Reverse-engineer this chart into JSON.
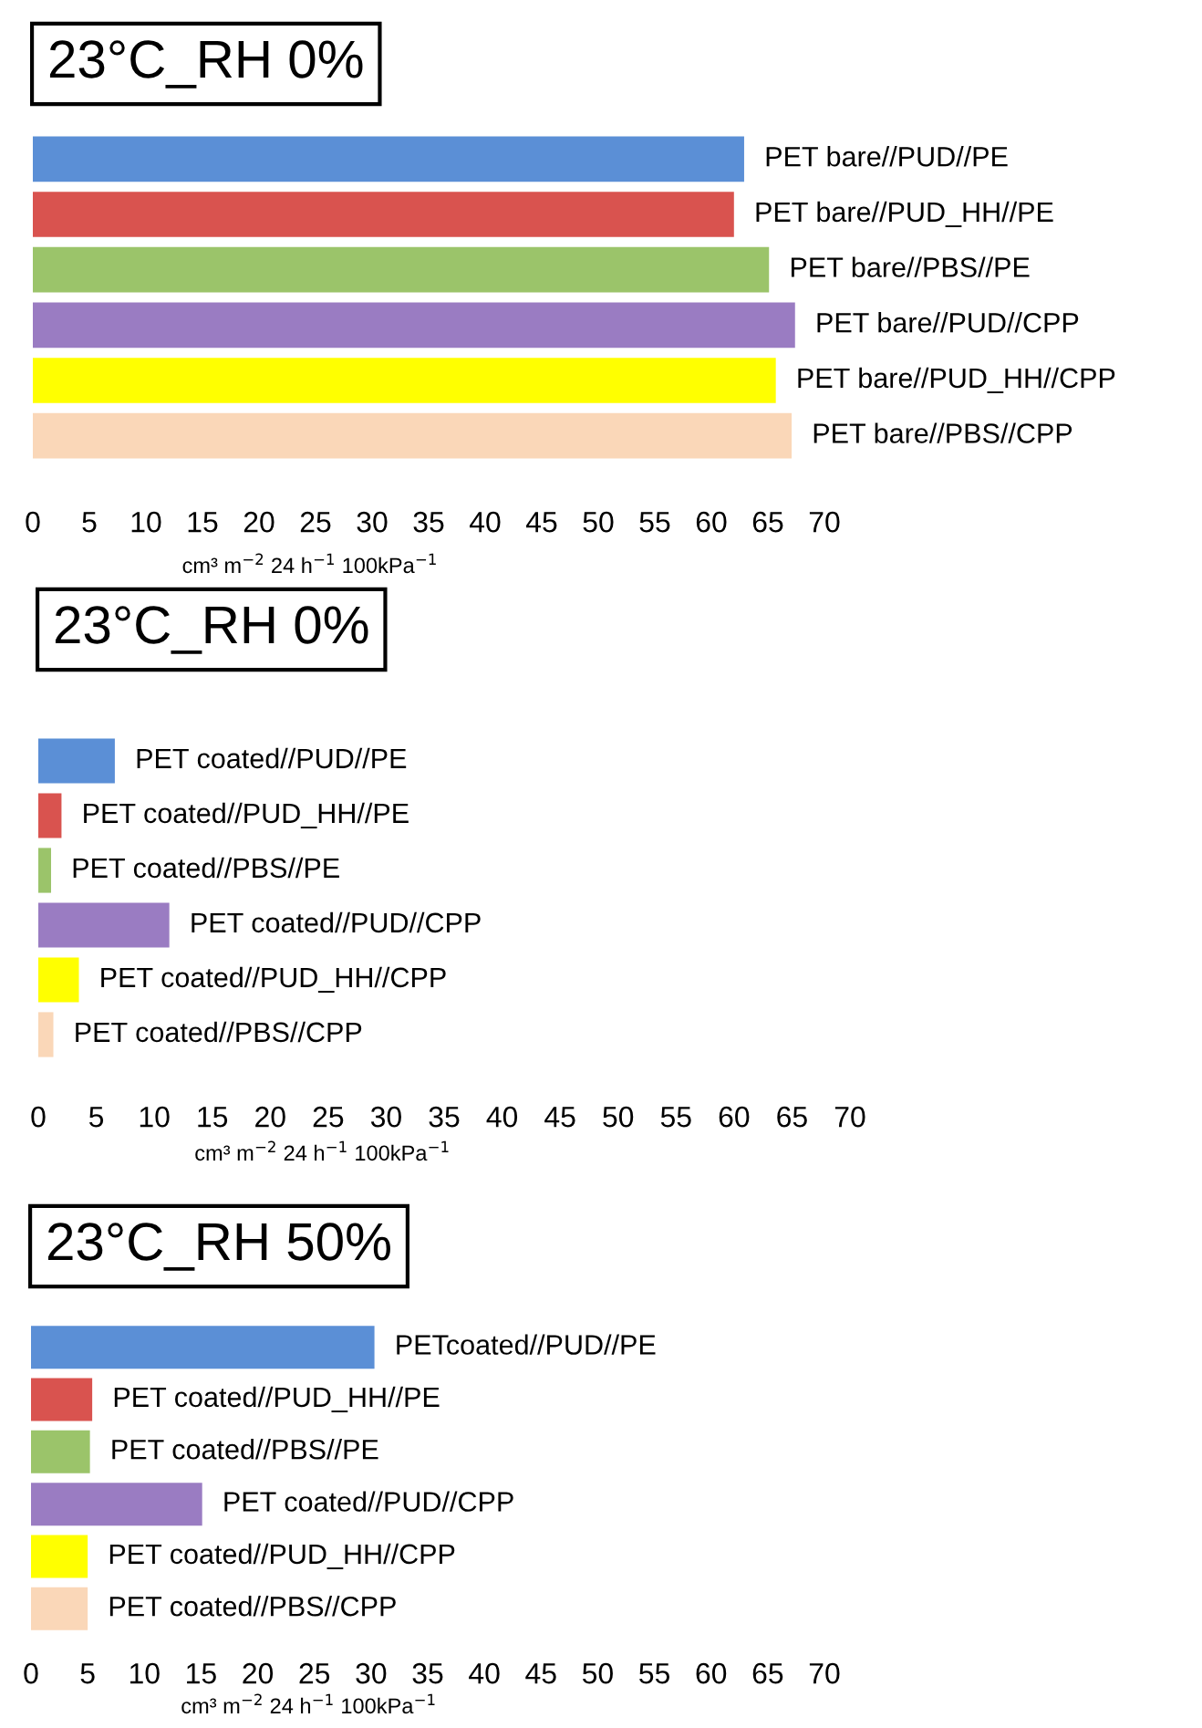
{
  "chart_data": [
    {
      "type": "bar",
      "orientation": "horizontal",
      "title": "23°C_RH 0%",
      "xlabel": "cm³ m$^{−2}$ 24 h$^{−1}$ 100kPa$^{−1}$",
      "categories": [
        "PET bare//PUD//PE",
        "PET bare//PUD_HH//PE",
        "PET bare//PBS//PE",
        "PET bare//PUD//CPP",
        "PET bare//PUD_HH//CPP",
        "PET bare//PBS//CPP"
      ],
      "values": [
        62.9,
        62.0,
        65.1,
        67.4,
        65.7,
        67.1
      ],
      "colors": [
        "#5b8fd6",
        "#d9534f",
        "#9bc46a",
        "#9a7cc2",
        "#ffff00",
        "#fad7b8"
      ],
      "xlim": [
        0,
        70
      ],
      "xticks": [
        0,
        5,
        10,
        15,
        20,
        25,
        30,
        35,
        40,
        45,
        50,
        55,
        60,
        65,
        70
      ],
      "tick_labels": "x"
    },
    {
      "type": "bar",
      "orientation": "horizontal",
      "title": "23°C_RH 0%",
      "xlabel": "cm³ m$^{−2}$ 24 h$^{−1}$ 100kPa$^{−1}$",
      "categories": [
        "PET coated//PUD//PE",
        "PET coated//PUD_HH//PE",
        "PET coated//PBS//PE",
        "PET coated//PUD//CPP",
        "PET coated//PUD_HH//CPP",
        "PET coated//PBS//CPP"
      ],
      "values": [
        6.6,
        2.0,
        1.1,
        11.3,
        3.5,
        1.3
      ],
      "colors": [
        "#5b8fd6",
        "#d9534f",
        "#9bc46a",
        "#9a7cc2",
        "#ffff00",
        "#fad7b8"
      ],
      "xlim": [
        0,
        70
      ],
      "xticks": [
        0,
        5,
        10,
        15,
        20,
        25,
        30,
        35,
        40,
        45,
        50,
        55,
        60,
        65,
        70
      ],
      "tick_labels": "x"
    },
    {
      "type": "bar",
      "orientation": "horizontal",
      "title": "23°C_RH 50%",
      "xlabel": "cm³ m$^{−2}$ 24 h$^{−1}$ 100kPa$^{−1}$",
      "categories": [
        "PETcoated//PUD//PE",
        "PET coated//PUD_HH//PE",
        "PET coated//PBS//PE",
        "PET coated//PUD//CPP",
        "PET coated//PUD_HH//CPP",
        "PET coated//PBS//CPP"
      ],
      "values": [
        30.3,
        5.4,
        5.2,
        15.1,
        5.0,
        5.0
      ],
      "colors": [
        "#5b8fd6",
        "#d9534f",
        "#9bc46a",
        "#9a7cc2",
        "#ffff00",
        "#fad7b8"
      ],
      "xlim": [
        0,
        70
      ],
      "xticks": [
        0,
        5,
        10,
        15,
        20,
        25,
        30,
        35,
        40,
        45,
        50,
        55,
        60,
        65,
        70
      ],
      "tick_labels": "x"
    }
  ]
}
